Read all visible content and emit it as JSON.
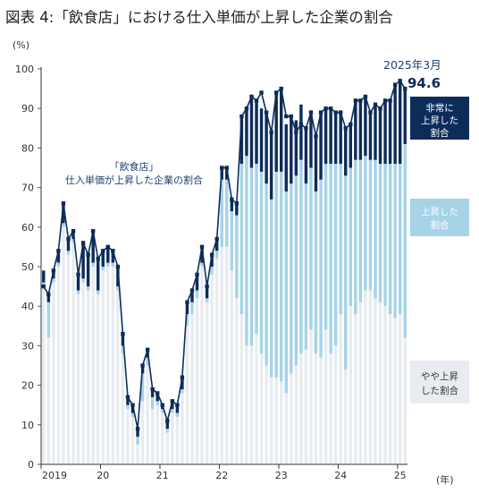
{
  "chart_data": {
    "type": "bar",
    "title": "図表 4:「飲食店」における仕入単価が上昇した企業の割合",
    "y_unit": "(%)",
    "x_unit": "(年)",
    "ylim": [
      0,
      100
    ],
    "y_ticks": [
      0,
      10,
      20,
      30,
      40,
      50,
      60,
      70,
      80,
      90,
      100
    ],
    "x_tick_labels": [
      {
        "label": "2019",
        "month_index": 1
      },
      {
        "label": "20",
        "month_index": 12
      },
      {
        "label": "21",
        "month_index": 24
      },
      {
        "label": "22",
        "month_index": 36
      },
      {
        "label": "23",
        "month_index": 48
      },
      {
        "label": "24",
        "month_index": 60
      },
      {
        "label": "25",
        "month_index": 72
      }
    ],
    "start_label": "2019年1月",
    "series": [
      {
        "name": "やや上昇した割合",
        "color": "#e8ecf0",
        "values": [
          45,
          32,
          46,
          50,
          60,
          53,
          56,
          43,
          46,
          44,
          50,
          43,
          49,
          50,
          50,
          44,
          28,
          14,
          12,
          5,
          16,
          25,
          14,
          15,
          13,
          8,
          13,
          12,
          18,
          35,
          38,
          42,
          50,
          41,
          48,
          52,
          55,
          55,
          49,
          42,
          38,
          30,
          30,
          33,
          28,
          25,
          22,
          22,
          21,
          18,
          23,
          25,
          28,
          29,
          34,
          28,
          27,
          34,
          28,
          30,
          38,
          24,
          40,
          38,
          41,
          44,
          44,
          42,
          41,
          40,
          38,
          37,
          38,
          32
        ]
      },
      {
        "name": "上昇した割合",
        "color": "#a6d3e8",
        "values": [
          1,
          9,
          1,
          1,
          1,
          1,
          1,
          1,
          1,
          1,
          1,
          1,
          1,
          1,
          1,
          1,
          2,
          1,
          1,
          2,
          7,
          2,
          3,
          1,
          1,
          1,
          1,
          1,
          1,
          3,
          3,
          2,
          1,
          1,
          2,
          2,
          17,
          17,
          15,
          21,
          38,
          48,
          45,
          43,
          46,
          46,
          45,
          52,
          53,
          51,
          48,
          48,
          49,
          42,
          41,
          41,
          45,
          42,
          48,
          46,
          38,
          49,
          35,
          39,
          36,
          34,
          33,
          35,
          35,
          36,
          38,
          39,
          38,
          49
        ]
      },
      {
        "name": "非常に上昇した割合",
        "color": "#0d2c5a",
        "values": [
          3,
          2,
          2,
          3,
          5,
          3,
          2,
          4,
          9,
          8,
          8,
          8,
          4,
          4,
          3,
          5,
          3,
          2,
          2,
          2,
          2,
          2,
          2,
          2,
          1,
          2,
          2,
          2,
          3,
          3,
          3,
          4,
          4,
          3,
          3,
          3,
          3,
          3,
          3,
          3,
          12,
          12,
          18,
          16,
          16,
          18,
          17,
          20,
          21,
          17,
          17,
          14,
          14,
          14,
          14,
          14,
          17,
          14,
          14,
          13,
          13,
          12,
          11,
          15,
          15,
          15,
          12,
          14,
          14,
          16,
          16,
          20,
          21,
          14
        ]
      }
    ],
    "line": {
      "name": "「飲食店」仕入単価が上昇した企業の割合",
      "values": [
        45,
        43,
        49,
        54,
        66,
        57,
        59,
        48,
        56,
        53,
        59,
        52,
        54,
        55,
        54,
        50,
        33,
        17,
        15,
        9,
        25,
        29,
        19,
        18,
        15,
        11,
        16,
        15,
        22,
        41,
        44,
        48,
        55,
        45,
        53,
        57,
        75,
        75,
        67,
        66,
        88,
        90,
        93,
        92,
        94,
        89,
        84,
        94,
        95,
        88,
        88,
        84,
        86,
        85,
        89,
        83,
        89,
        90,
        90,
        89,
        89,
        85,
        86,
        92,
        92,
        93,
        89,
        91,
        90,
        92,
        92,
        96,
        97,
        95
      ]
    },
    "annotations": {
      "last_point_label": "2025年3月",
      "last_point_value": "94.6",
      "line_label_1": "「飲食店」",
      "line_label_2": "仕入単価が上昇した企業の割合"
    },
    "legend": [
      {
        "key": "very",
        "line1": "非常に",
        "line2": "上昇した",
        "line3": "割合",
        "bg": "#0d2c5a",
        "fg": "#ffffff"
      },
      {
        "key": "up",
        "line1": "上昇した",
        "line2": "割合",
        "bg": "#a6d3e8",
        "fg": "#ffffff"
      },
      {
        "key": "slight",
        "line1": "やや上昇",
        "line2": "した割合",
        "bg": "#e8ecf0",
        "fg": "#333333"
      }
    ],
    "grid": false,
    "legend_placement": "right"
  }
}
